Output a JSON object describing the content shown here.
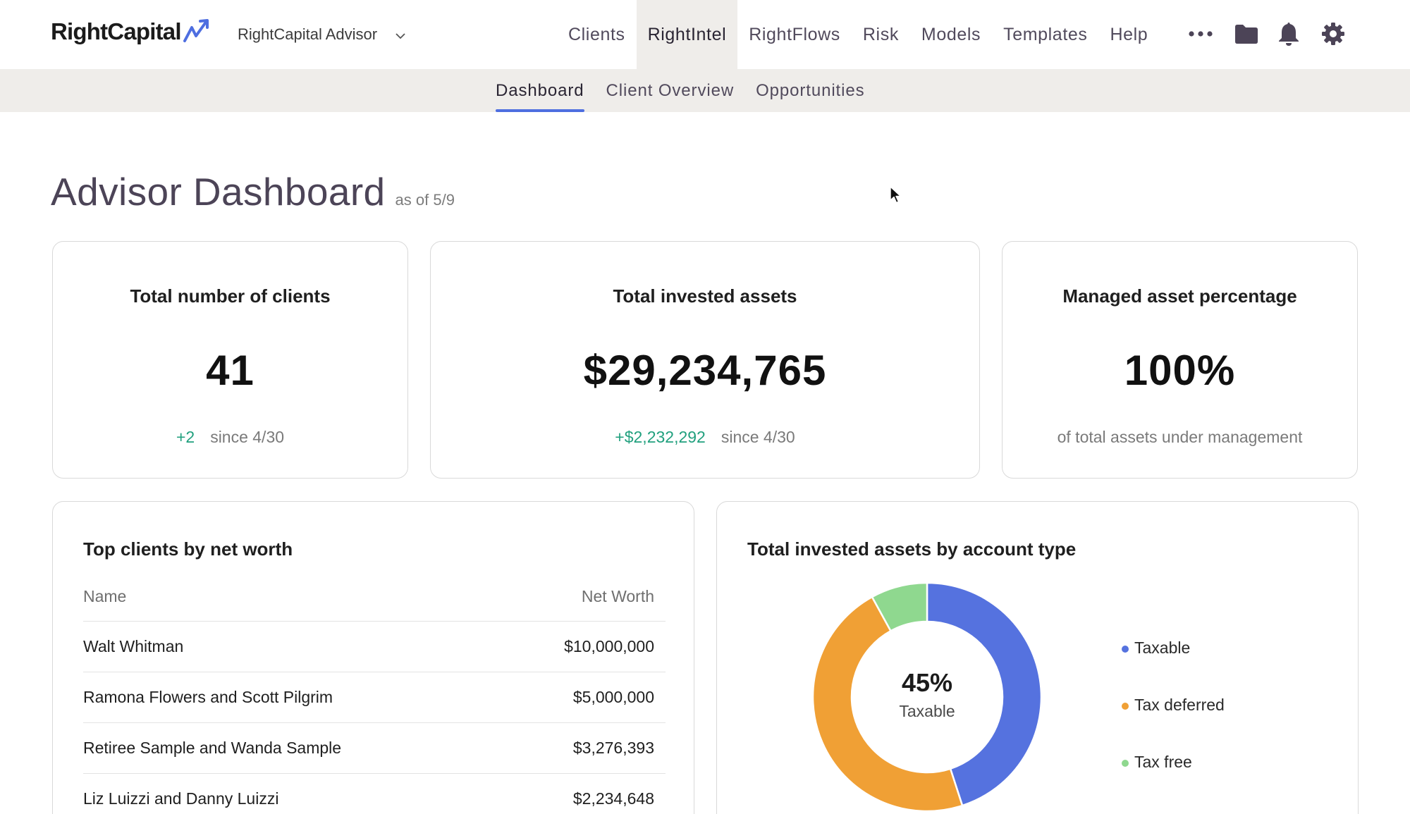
{
  "brand": {
    "name": "RightCapital",
    "accent": "#4e6ee0"
  },
  "header": {
    "advisor_select": "RightCapital Advisor",
    "nav": [
      {
        "label": "Clients",
        "active": false
      },
      {
        "label": "RightIntel",
        "active": true
      },
      {
        "label": "RightFlows",
        "active": false
      },
      {
        "label": "Risk",
        "active": false
      },
      {
        "label": "Models",
        "active": false
      },
      {
        "label": "Templates",
        "active": false
      },
      {
        "label": "Help",
        "active": false
      }
    ],
    "icons": [
      "more-icon",
      "folder-icon",
      "bell-icon",
      "gear-icon"
    ]
  },
  "subnav": {
    "tabs": [
      {
        "label": "Dashboard",
        "active": true
      },
      {
        "label": "Client Overview",
        "active": false
      },
      {
        "label": "Opportunities",
        "active": false
      }
    ]
  },
  "page": {
    "title": "Advisor Dashboard",
    "as_of": "as of 5/9"
  },
  "stats": {
    "clients": {
      "title": "Total number of clients",
      "value": "41",
      "delta": "+2",
      "since": "since 4/30"
    },
    "invested": {
      "title": "Total invested assets",
      "value": "$29,234,765",
      "delta": "+$2,232,292",
      "since": "since 4/30"
    },
    "managed": {
      "title": "Managed asset percentage",
      "value": "100%",
      "note": "of total assets under management"
    }
  },
  "top_clients": {
    "title": "Top clients by net worth",
    "columns": [
      "Name",
      "Net Worth"
    ],
    "rows": [
      {
        "name": "Walt Whitman",
        "net_worth": "$10,000,000"
      },
      {
        "name": "Ramona Flowers and Scott Pilgrim",
        "net_worth": "$5,000,000"
      },
      {
        "name": "Retiree Sample and Wanda Sample",
        "net_worth": "$3,276,393"
      },
      {
        "name": "Liz Luizzi and Danny Luizzi",
        "net_worth": "$2,234,648"
      }
    ]
  },
  "account_types": {
    "title": "Total invested assets by account type",
    "center_value": "45%",
    "center_label": "Taxable"
  },
  "chart_data": {
    "type": "pie",
    "categories": [
      "Taxable",
      "Tax deferred",
      "Tax free"
    ],
    "values": [
      45,
      47,
      8
    ],
    "colors": [
      "#5572df",
      "#f0a035",
      "#8fd88f"
    ],
    "legend": "right",
    "title": "Total invested assets by account type"
  }
}
